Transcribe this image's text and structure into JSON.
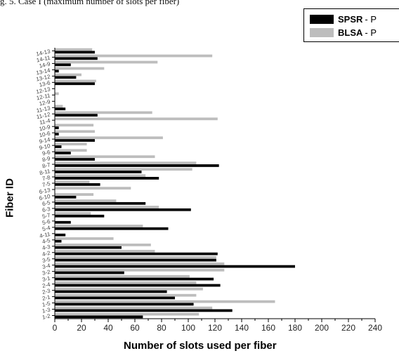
{
  "caption": "g. 5. Case I (maximum number of slots per fiber)",
  "legend": {
    "items": [
      {
        "name": "SPSR",
        "suffix": "- P",
        "color": "#000000"
      },
      {
        "name": "BLSA",
        "suffix": "- P",
        "color": "#bdbdbd"
      }
    ]
  },
  "chart_data": {
    "type": "bar",
    "orientation": "horizontal",
    "ylabel": "Fiber ID",
    "xlabel": "Number of slots used per fiber",
    "xlim": [
      0,
      240
    ],
    "xticks": [
      0,
      20,
      40,
      60,
      80,
      100,
      120,
      140,
      160,
      180,
      200,
      220,
      240
    ],
    "grid": false,
    "legend_position": "top-right",
    "categories": [
      "1-2",
      "1-3",
      "1-5",
      "2-1",
      "2-3",
      "2-4",
      "3-1",
      "3-2",
      "3-4",
      "3-5",
      "4-2",
      "4-3",
      "4-5",
      "4-11",
      "5-4",
      "5-6",
      "5-7",
      "6-3",
      "6-5",
      "6-10",
      "6-13",
      "7-5",
      "7-8",
      "8-11",
      "8-7",
      "8-9",
      "9-6",
      "9-10",
      "9-14",
      "10-6",
      "10-9",
      "11-4",
      "11-12",
      "11-13",
      "12-9",
      "12-11",
      "12-13",
      "13-6",
      "13-12",
      "13-14",
      "14-9",
      "14-11",
      "14-13"
    ],
    "series": [
      {
        "name": "SPSR",
        "color": "#000000",
        "values": [
          66,
          133,
          104,
          90,
          84,
          124,
          119,
          52,
          180,
          121,
          122,
          50,
          5,
          8,
          85,
          12,
          37,
          102,
          68,
          16,
          0,
          34,
          78,
          65,
          123,
          30,
          12,
          5,
          30,
          3,
          3,
          0,
          32,
          8,
          0,
          0,
          0,
          30,
          16,
          3,
          12,
          32,
          30
        ]
      },
      {
        "name": "BLSA",
        "color": "#bdbdbd",
        "values": [
          108,
          118,
          165,
          106,
          111,
          106,
          101,
          127,
          127,
          121,
          75,
          72,
          44,
          0,
          66,
          0,
          27,
          78,
          46,
          29,
          57,
          26,
          68,
          103,
          106,
          75,
          24,
          24,
          81,
          30,
          29,
          122,
          73,
          6,
          0,
          3,
          0,
          31,
          20,
          37,
          77,
          118,
          28
        ]
      }
    ]
  }
}
